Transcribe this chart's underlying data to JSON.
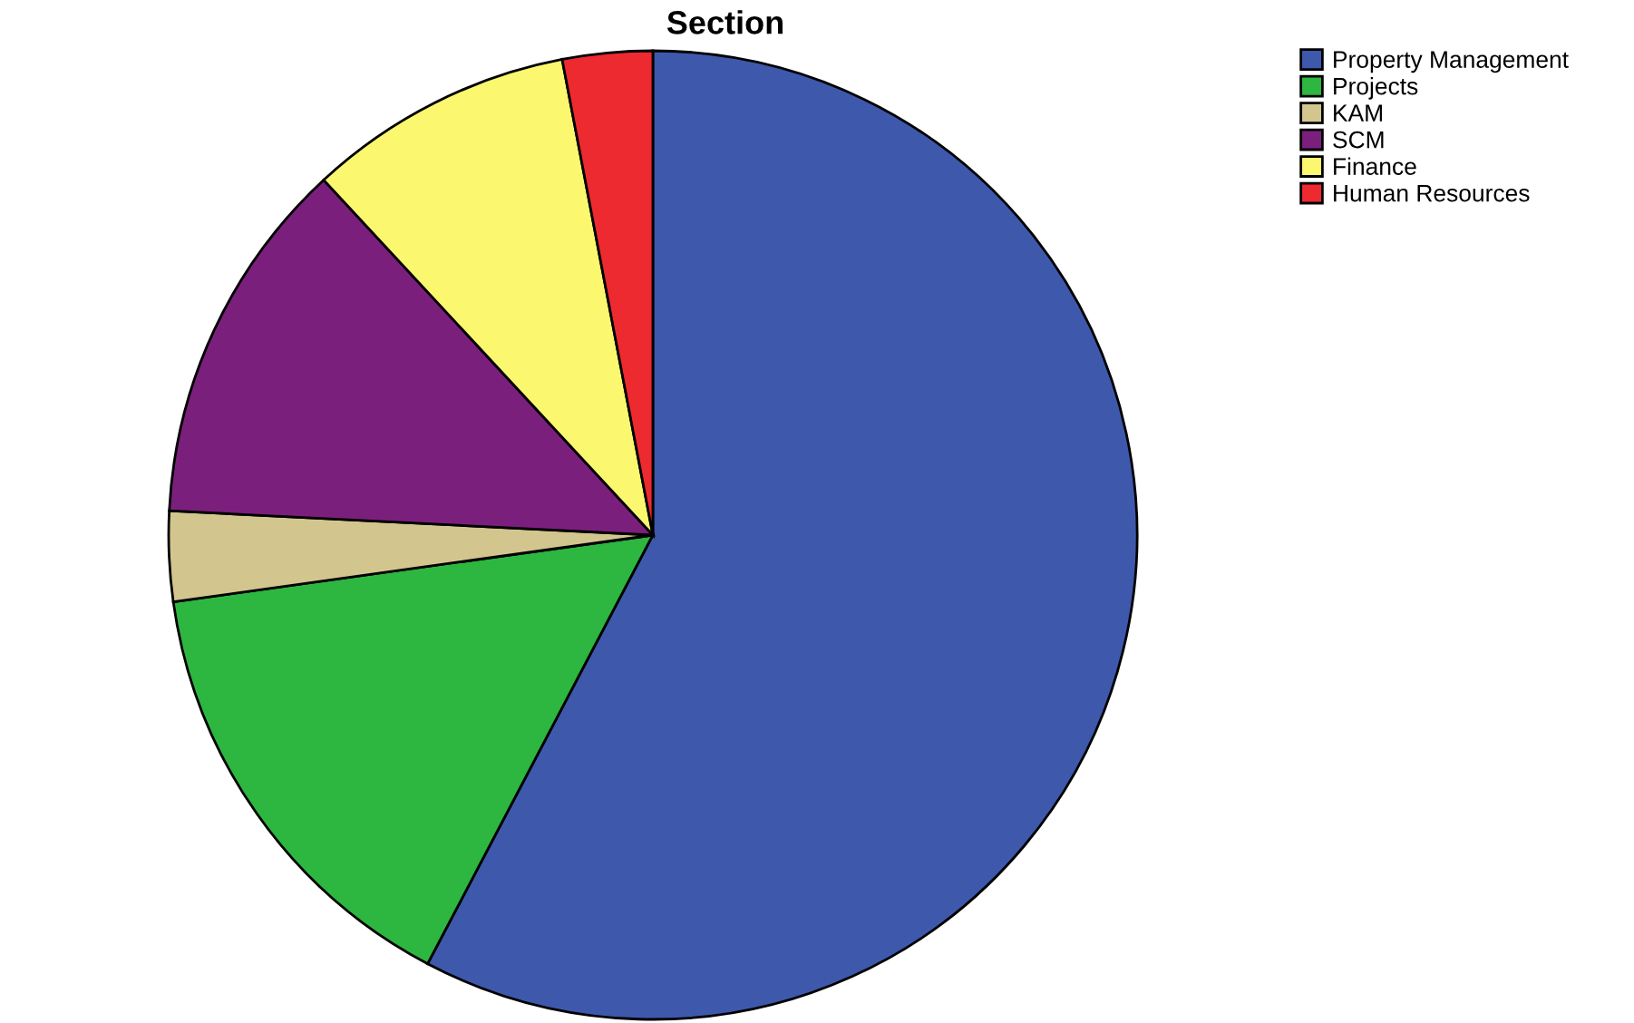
{
  "chart_data": {
    "type": "pie",
    "title": "Section",
    "categories": [
      "Property Management",
      "Projects",
      "KAM",
      "SCM",
      "Finance",
      "Human Resources"
    ],
    "values": [
      57.7,
      15.1,
      3.0,
      12.3,
      8.9,
      3.0
    ],
    "colors": [
      "#3e58ac",
      "#2db640",
      "#d2c68e",
      "#7b1f7d",
      "#fbf870",
      "#ec2a2f"
    ],
    "legend": "top right"
  }
}
